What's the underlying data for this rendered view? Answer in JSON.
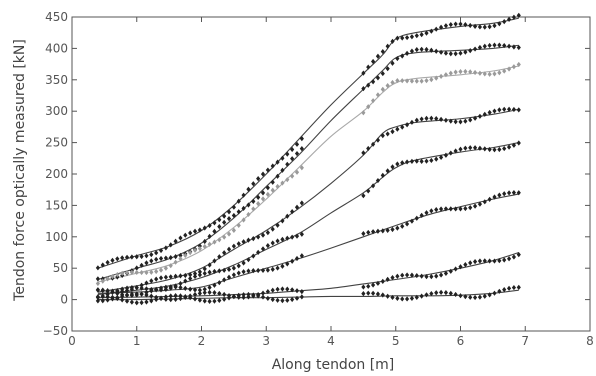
{
  "chart_data": {
    "type": "scatter",
    "title": "",
    "xlabel": "Along tendon [m]",
    "ylabel": "Tendon force optically measured [kN]",
    "xlim": [
      0,
      8
    ],
    "ylim": [
      -50,
      450
    ],
    "xticks": [
      0,
      1,
      2,
      3,
      4,
      5,
      6,
      7,
      8
    ],
    "xtick_labels": [
      "0",
      "1",
      "2",
      "3",
      "4",
      "5",
      "6",
      "7",
      "8"
    ],
    "yticks": [
      -50,
      0,
      50,
      100,
      150,
      200,
      250,
      300,
      350,
      400,
      450
    ],
    "ytick_labels": [
      "−50",
      "0",
      "50",
      "100",
      "150",
      "200",
      "250",
      "300",
      "350",
      "400",
      "450"
    ],
    "grid": false,
    "legend": "none",
    "colors": {
      "dark": "#222222",
      "gray": "#9a9a9a",
      "axis": "#555555"
    },
    "measured_ranges_m": [
      [
        0.4,
        3.6
      ],
      [
        4.5,
        6.9
      ]
    ],
    "series": [
      {
        "color": "#222222",
        "values": [
          [
            0.4,
            50
          ],
          [
            1.0,
            70
          ],
          [
            1.5,
            85
          ],
          [
            2.0,
            110
          ],
          [
            2.5,
            150
          ],
          [
            3.0,
            200
          ],
          [
            3.5,
            255
          ],
          [
            4.0,
            310
          ],
          [
            4.5,
            360
          ],
          [
            4.8,
            390
          ],
          [
            5.0,
            415
          ],
          [
            5.3,
            425
          ],
          [
            6.0,
            435
          ],
          [
            6.5,
            440
          ],
          [
            6.9,
            448
          ]
        ]
      },
      {
        "color": "#222222",
        "values": [
          [
            0.4,
            32
          ],
          [
            1.0,
            50
          ],
          [
            1.5,
            65
          ],
          [
            2.0,
            90
          ],
          [
            2.5,
            130
          ],
          [
            3.0,
            180
          ],
          [
            3.5,
            230
          ],
          [
            4.0,
            285
          ],
          [
            4.5,
            335
          ],
          [
            4.8,
            365
          ],
          [
            5.0,
            385
          ],
          [
            5.3,
            393
          ],
          [
            6.0,
            397
          ],
          [
            6.5,
            400
          ],
          [
            6.9,
            405
          ]
        ]
      },
      {
        "color": "#9a9a9a",
        "values": [
          [
            0.4,
            28
          ],
          [
            1.0,
            42
          ],
          [
            1.5,
            55
          ],
          [
            2.0,
            78
          ],
          [
            2.5,
            115
          ],
          [
            3.0,
            160
          ],
          [
            3.5,
            210
          ],
          [
            4.0,
            260
          ],
          [
            4.5,
            300
          ],
          [
            4.8,
            330
          ],
          [
            5.0,
            345
          ],
          [
            5.3,
            352
          ],
          [
            6.0,
            358
          ],
          [
            6.5,
            364
          ],
          [
            6.9,
            372
          ]
        ]
      },
      {
        "color": "#222222",
        "values": [
          [
            0.4,
            12
          ],
          [
            1.0,
            22
          ],
          [
            1.5,
            32
          ],
          [
            2.0,
            50
          ],
          [
            2.5,
            80
          ],
          [
            3.0,
            110
          ],
          [
            3.5,
            145
          ],
          [
            4.0,
            185
          ],
          [
            4.5,
            230
          ],
          [
            4.8,
            265
          ],
          [
            5.0,
            275
          ],
          [
            5.3,
            282
          ],
          [
            6.0,
            288
          ],
          [
            6.5,
            295
          ],
          [
            6.9,
            303
          ]
        ]
      },
      {
        "color": "#222222",
        "values": [
          [
            0.4,
            8
          ],
          [
            1.0,
            15
          ],
          [
            1.5,
            22
          ],
          [
            2.0,
            35
          ],
          [
            2.5,
            55
          ],
          [
            3.0,
            80
          ],
          [
            3.5,
            105
          ],
          [
            4.0,
            138
          ],
          [
            4.5,
            170
          ],
          [
            4.8,
            195
          ],
          [
            5.0,
            210
          ],
          [
            5.3,
            222
          ],
          [
            6.0,
            235
          ],
          [
            6.5,
            242
          ],
          [
            6.9,
            250
          ]
        ]
      },
      {
        "color": "#222222",
        "values": [
          [
            0.4,
            10
          ],
          [
            1.0,
            12
          ],
          [
            1.5,
            15
          ],
          [
            2.0,
            20
          ],
          [
            2.5,
            35
          ],
          [
            3.0,
            50
          ],
          [
            3.5,
            65
          ],
          [
            4.0,
            82
          ],
          [
            4.5,
            100
          ],
          [
            5.0,
            118
          ],
          [
            5.5,
            135
          ],
          [
            6.0,
            148
          ],
          [
            6.5,
            160
          ],
          [
            6.9,
            168
          ]
        ]
      },
      {
        "color": "#222222",
        "values": [
          [
            0.4,
            3
          ],
          [
            1.0,
            4
          ],
          [
            1.5,
            5
          ],
          [
            2.0,
            6
          ],
          [
            2.5,
            8
          ],
          [
            3.0,
            10
          ],
          [
            3.5,
            14
          ],
          [
            4.0,
            18
          ],
          [
            4.5,
            25
          ],
          [
            5.0,
            32
          ],
          [
            5.5,
            40
          ],
          [
            6.0,
            50
          ],
          [
            6.5,
            62
          ],
          [
            6.9,
            75
          ]
        ]
      },
      {
        "color": "#222222",
        "values": [
          [
            0.4,
            0
          ],
          [
            1.0,
            0
          ],
          [
            1.5,
            1
          ],
          [
            2.0,
            2
          ],
          [
            2.5,
            3
          ],
          [
            3.0,
            3
          ],
          [
            3.5,
            4
          ],
          [
            4.0,
            5
          ],
          [
            4.5,
            5
          ],
          [
            5.0,
            6
          ],
          [
            5.5,
            6
          ],
          [
            6.0,
            7
          ],
          [
            6.5,
            10
          ],
          [
            6.9,
            15
          ]
        ]
      }
    ]
  }
}
